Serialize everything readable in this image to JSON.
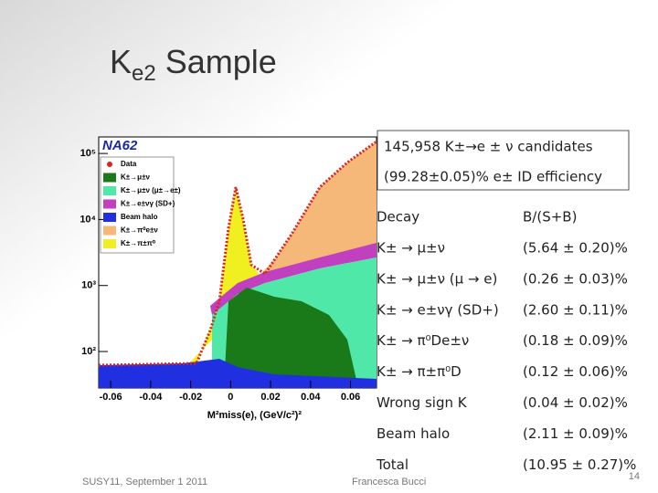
{
  "title": {
    "main": "K",
    "sub": "e2",
    "rest": "Sample"
  },
  "summary": [
    "145,958 K±→e ± ν candidates",
    "(99.28±0.05)% e± ID efficiency"
  ],
  "table": {
    "header": [
      "Decay",
      "B/(S+B)"
    ],
    "rows": [
      [
        "K± → μ±ν",
        "(5.64 ± 0.20)%"
      ],
      [
        "K± → μ±ν (μ → e)",
        "(0.26 ± 0.03)%"
      ],
      [
        "K± → e±νγ (SD+)",
        "(2.60 ± 0.11)%"
      ],
      [
        "K± → π⁰De±ν",
        "(0.18 ± 0.09)%"
      ],
      [
        "K± → π±π⁰D",
        "(0.12 ± 0.06)%"
      ],
      [
        "Wrong sign K",
        "(0.04 ± 0.02)%"
      ],
      [
        "Beam halo",
        "(2.11 ± 0.09)%"
      ],
      [
        "Total",
        "(10.95 ± 0.27)%"
      ]
    ]
  },
  "plot": {
    "label": "NA62",
    "legend": [
      {
        "name": "Data",
        "color": "#e02020"
      },
      {
        "name": "K±→μ±ν",
        "color": "#1a7a1a"
      },
      {
        "name": "K±→μ±ν (μ±→e±)",
        "color": "#50e8a8"
      },
      {
        "name": "K±→e±νγ (SD+)",
        "color": "#c040c0"
      },
      {
        "name": "Beam halo",
        "color": "#2030e0"
      },
      {
        "name": "K±→π⁰e±ν",
        "color": "#f5b878"
      },
      {
        "name": "K±→π±π⁰",
        "color": "#f0f020"
      }
    ],
    "x_label": "M²miss(e), (GeV/c²)²",
    "xlim": [
      -0.066,
      0.073
    ],
    "xticks": [
      -0.06,
      -0.04,
      -0.02,
      0,
      0.02,
      0.04,
      0.06
    ],
    "ylim": [
      28,
      178000
    ],
    "yticks": [
      {
        "value": 100,
        "label": "10²"
      },
      {
        "value": 1000,
        "label": "10³"
      },
      {
        "value": 10000,
        "label": "10⁴"
      },
      {
        "value": 100000,
        "label": "10⁵"
      }
    ],
    "log_y": true
  },
  "footer": {
    "left": "SUSY11, September 1 2011",
    "center": "Francesca Bucci",
    "page": "14"
  }
}
